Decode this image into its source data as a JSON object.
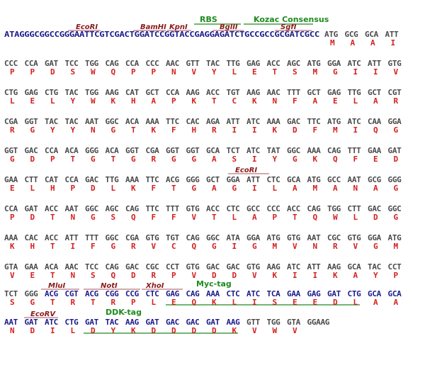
{
  "colors": {
    "gray": "#4a4a4a",
    "blue": "#1a1a8c",
    "red": "#d42020",
    "enzyme": "#8b1a1a",
    "tag": "#1e8a1e"
  },
  "header": {
    "features": [
      {
        "id": "rbs",
        "label": "RBS"
      },
      {
        "id": "kozac",
        "label": "Kozac Consensus"
      }
    ],
    "enzymes": [
      {
        "id": "ecori",
        "label": "EcoRI"
      },
      {
        "id": "bamhi",
        "label": "BamHI"
      },
      {
        "id": "kpni",
        "label": "KpnI"
      },
      {
        "id": "bglii",
        "label": "BglII"
      },
      {
        "id": "sgfi",
        "label": "SgfI"
      }
    ],
    "leader": "ATAGGGCGGCCGGGAATTCGTCGACTGGATCCGGTACCGAGGAGATCTGCCGCCGCGATCGCC"
  },
  "rows": [
    {
      "codons": [
        "ATG",
        "GCG",
        "GCA",
        "ATT"
      ],
      "aa": [
        "M",
        "A",
        "A",
        "I"
      ]
    },
    {
      "codons": [
        "CCC",
        "CCA",
        "GAT",
        "TCC",
        "TGG",
        "CAG",
        "CCA",
        "CCC",
        "AAC",
        "GTT",
        "TAC",
        "TTG",
        "GAG",
        "ACC",
        "AGC",
        "ATG",
        "GGA",
        "ATC",
        "ATT",
        "GTG"
      ],
      "aa": [
        "P",
        "P",
        "D",
        "S",
        "W",
        "Q",
        "P",
        "P",
        "N",
        "V",
        "Y",
        "L",
        "E",
        "T",
        "S",
        "M",
        "G",
        "I",
        "I",
        "V"
      ]
    },
    {
      "codons": [
        "CTG",
        "GAG",
        "CTG",
        "TAC",
        "TGG",
        "AAG",
        "CAT",
        "GCT",
        "CCA",
        "AAG",
        "ACC",
        "TGT",
        "AAG",
        "AAC",
        "TTT",
        "GCT",
        "GAG",
        "TTG",
        "GCT",
        "CGT"
      ],
      "aa": [
        "L",
        "E",
        "L",
        "Y",
        "W",
        "K",
        "H",
        "A",
        "P",
        "K",
        "T",
        "C",
        "K",
        "N",
        "F",
        "A",
        "E",
        "L",
        "A",
        "R"
      ]
    },
    {
      "codons": [
        "CGA",
        "GGT",
        "TAC",
        "TAC",
        "AAT",
        "GGC",
        "ACA",
        "AAA",
        "TTC",
        "CAC",
        "AGA",
        "ATT",
        "ATC",
        "AAA",
        "GAC",
        "TTC",
        "ATG",
        "ATC",
        "CAA",
        "GGA"
      ],
      "aa": [
        "R",
        "G",
        "Y",
        "Y",
        "N",
        "G",
        "T",
        "K",
        "F",
        "H",
        "R",
        "I",
        "I",
        "K",
        "D",
        "F",
        "M",
        "I",
        "Q",
        "G"
      ]
    },
    {
      "codons": [
        "GGT",
        "GAC",
        "CCA",
        "ACA",
        "GGG",
        "ACA",
        "GGT",
        "CGA",
        "GGT",
        "GGT",
        "GCA",
        "TCT",
        "ATC",
        "TAT",
        "GGC",
        "AAA",
        "CAG",
        "TTT",
        "GAA",
        "GAT"
      ],
      "aa": [
        "G",
        "D",
        "P",
        "T",
        "G",
        "T",
        "G",
        "R",
        "G",
        "G",
        "A",
        "S",
        "I",
        "Y",
        "G",
        "K",
        "Q",
        "F",
        "E",
        "D"
      ]
    },
    {
      "codons": [
        "GAA",
        "CTT",
        "CAT",
        "CCA",
        "GAC",
        "TTG",
        "AAA",
        "TTC",
        "ACG",
        "GGG",
        "GCT",
        "GGA",
        "ATT",
        "CTC",
        "GCA",
        "ATG",
        "GCC",
        "AAT",
        "GCG",
        "GGG"
      ],
      "aa": [
        "E",
        "L",
        "H",
        "P",
        "D",
        "L",
        "K",
        "F",
        "T",
        "G",
        "A",
        "G",
        "I",
        "L",
        "A",
        "M",
        "A",
        "N",
        "A",
        "G"
      ]
    },
    {
      "codons": [
        "CCA",
        "GAT",
        "ACC",
        "AAT",
        "GGC",
        "AGC",
        "CAG",
        "TTC",
        "TTT",
        "GTG",
        "ACC",
        "CTC",
        "GCC",
        "CCC",
        "ACC",
        "CAG",
        "TGG",
        "CTT",
        "GAC",
        "GGC"
      ],
      "aa": [
        "P",
        "D",
        "T",
        "N",
        "G",
        "S",
        "Q",
        "F",
        "F",
        "V",
        "T",
        "L",
        "A",
        "P",
        "T",
        "Q",
        "W",
        "L",
        "D",
        "G"
      ]
    },
    {
      "codons": [
        "AAA",
        "CAC",
        "ACC",
        "ATT",
        "TTT",
        "GGC",
        "CGA",
        "GTG",
        "TGT",
        "CAG",
        "GGC",
        "ATA",
        "GGA",
        "ATG",
        "GTG",
        "AAT",
        "CGC",
        "GTG",
        "GGA",
        "ATG"
      ],
      "aa": [
        "K",
        "H",
        "T",
        "I",
        "F",
        "G",
        "R",
        "V",
        "C",
        "Q",
        "G",
        "I",
        "G",
        "M",
        "V",
        "N",
        "R",
        "V",
        "G",
        "M"
      ]
    },
    {
      "codons": [
        "GTA",
        "GAA",
        "ACA",
        "AAC",
        "TCC",
        "CAG",
        "GAC",
        "CGC",
        "CCT",
        "GTG",
        "GAC",
        "GAC",
        "GTG",
        "AAG",
        "ATC",
        "ATT",
        "AAG",
        "GCA",
        "TAC",
        "CCT"
      ],
      "aa": [
        "V",
        "E",
        "T",
        "N",
        "S",
        "Q",
        "D",
        "R",
        "P",
        "V",
        "D",
        "D",
        "V",
        "K",
        "I",
        "I",
        "K",
        "A",
        "Y",
        "P"
      ]
    },
    {
      "codons": [
        "TCT",
        "GGG",
        "ACG",
        "CGT",
        "ACG",
        "CGG",
        "CCG",
        "CTC",
        "GAG",
        "CAG",
        "AAA",
        "CTC",
        "ATC",
        "TCA",
        "GAA",
        "GAG",
        "GAT",
        "CTG",
        "GCA",
        "GCA"
      ],
      "aa": [
        "S",
        "G",
        "T",
        "R",
        "T",
        "R",
        "P",
        "L",
        "E",
        "Q",
        "K",
        "L",
        "I",
        "S",
        "E",
        "E",
        "D",
        "L",
        "A",
        "A"
      ]
    },
    {
      "codons": [
        "AAT",
        "GAT",
        "ATC",
        "CTG",
        "GAT",
        "TAC",
        "AAG",
        "GAT",
        "GAC",
        "GAC",
        "GAT",
        "AAG",
        "GTT",
        "TGG",
        "GTA",
        "GGAAG"
      ],
      "aa": [
        "N",
        "D",
        "I",
        "L",
        "D",
        "Y",
        "K",
        "D",
        "D",
        "D",
        "D",
        "K",
        "V",
        "W",
        "V",
        ""
      ]
    }
  ],
  "annotations": [
    {
      "id": "ecori-2",
      "row": 5,
      "label": "EcoRI"
    },
    {
      "id": "mlui",
      "row": 9,
      "label": "MluI"
    },
    {
      "id": "noti",
      "row": 9,
      "label": "NotI"
    },
    {
      "id": "xhoi",
      "row": 9,
      "label": "XhoI"
    },
    {
      "id": "myc",
      "row": 9,
      "label": "Myc-tag"
    },
    {
      "id": "ecorv",
      "row": 10,
      "label": "EcoRV"
    },
    {
      "id": "ddk",
      "row": 10,
      "label": "DDK-tag"
    }
  ]
}
